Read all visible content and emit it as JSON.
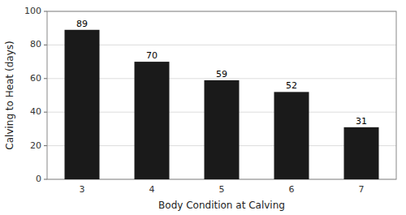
{
  "chart_data": {
    "type": "bar",
    "categories": [
      "3",
      "4",
      "5",
      "6",
      "7"
    ],
    "values": [
      89,
      70,
      59,
      52,
      31
    ],
    "color": "#1a1a1a",
    "xlabel": "Body Condition at Calving",
    "ylabel": "Calving to Heat (days)",
    "ylim": [
      0,
      100
    ],
    "yticks": [
      0,
      20,
      40,
      60,
      80,
      100
    ],
    "grid": true,
    "data_labels": true
  }
}
